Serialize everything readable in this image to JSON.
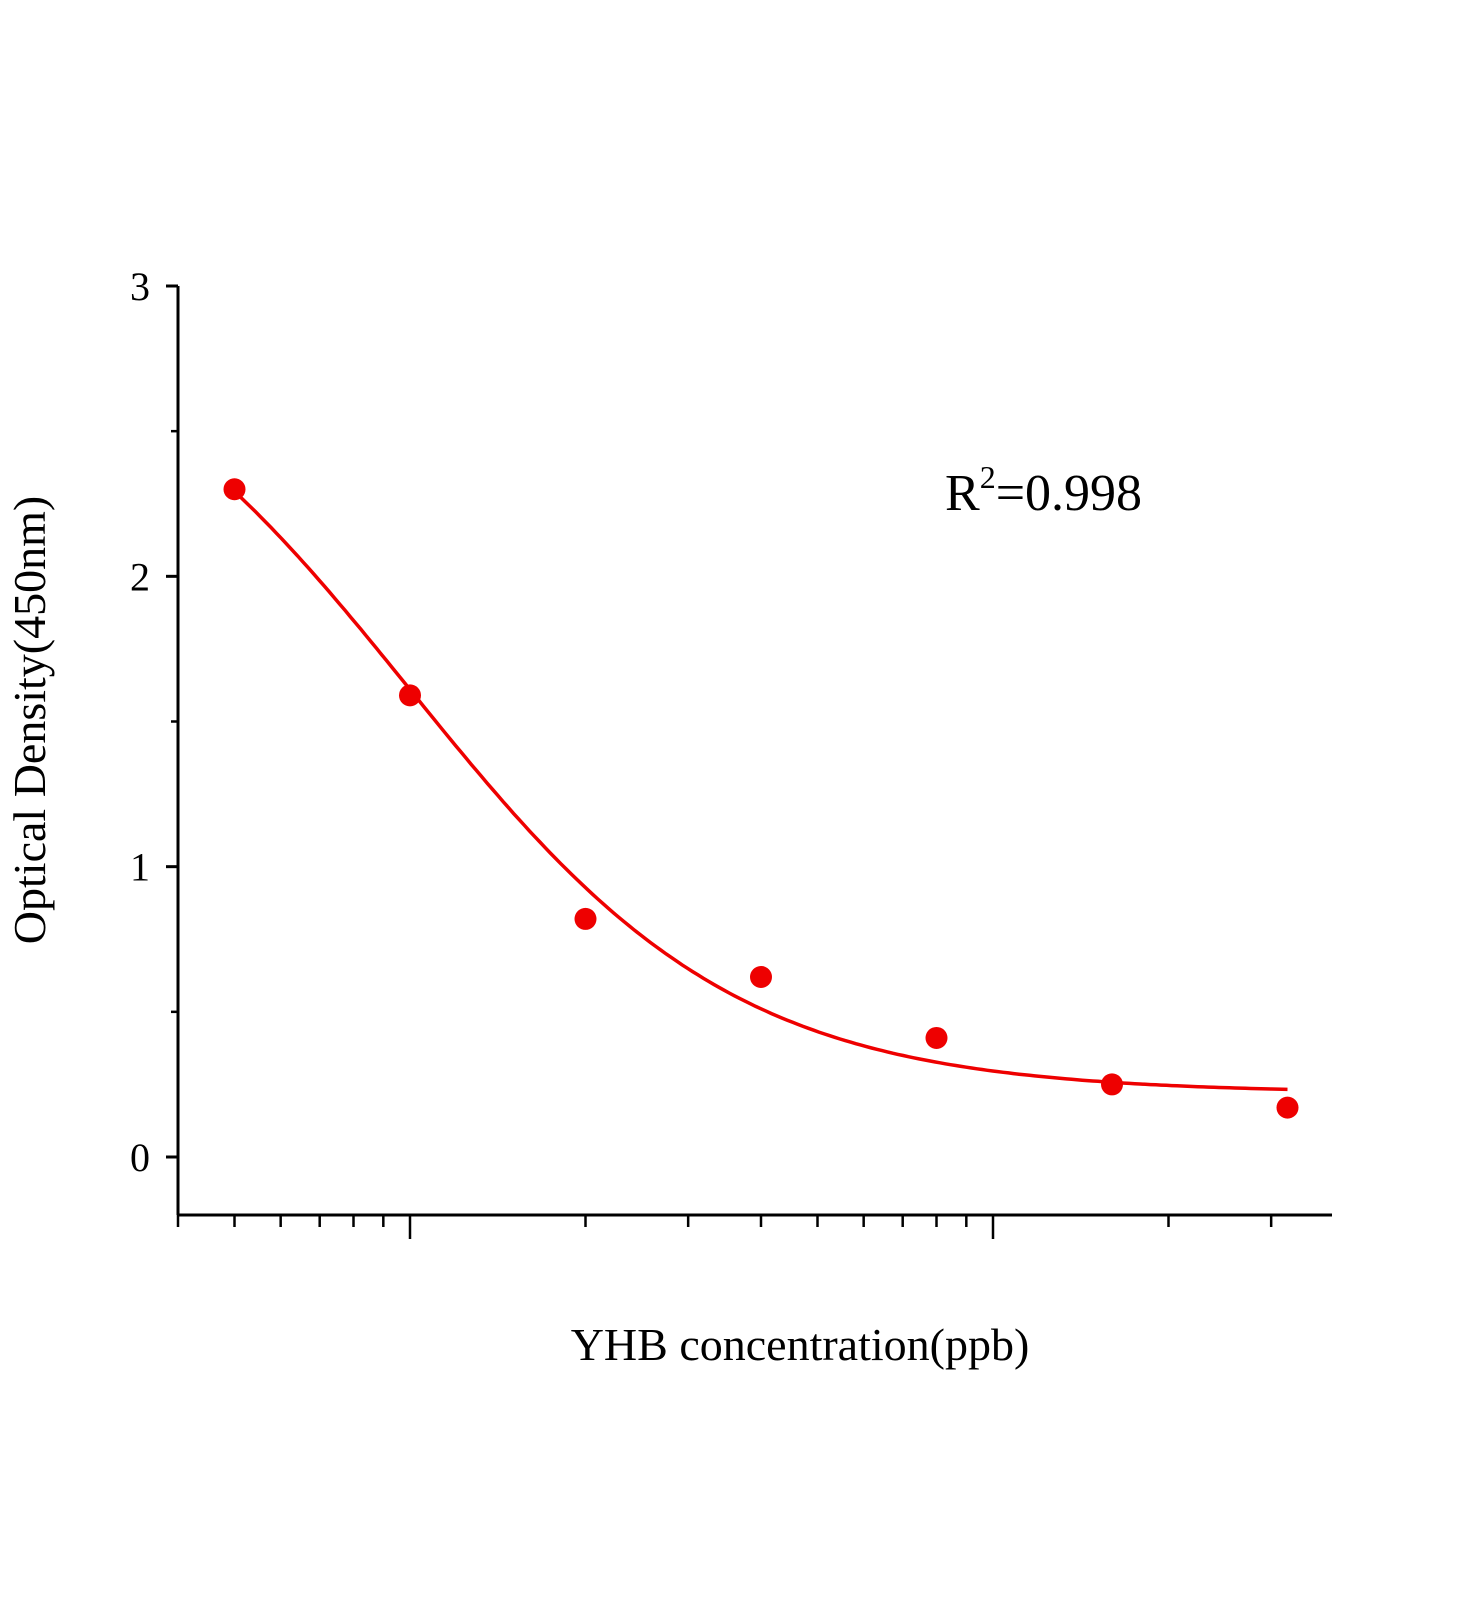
{
  "chart_data": {
    "type": "scatter",
    "title": "",
    "xlabel": "YHB concentration(ppb)",
    "ylabel": "Optical Density(450nm)",
    "x_scale": "log",
    "x_tick_labels": [],
    "xlim": [
      0.4,
      38
    ],
    "ylim": [
      -0.2,
      3
    ],
    "y_ticks": [
      0,
      1,
      2,
      3
    ],
    "grid": false,
    "legend": "none",
    "color": "#ee0000",
    "points": {
      "x": [
        0.5,
        1,
        2,
        4,
        8,
        16,
        32
      ],
      "y": [
        2.3,
        1.59,
        0.82,
        0.62,
        0.41,
        0.25,
        0.17
      ]
    },
    "fit": {
      "model": "4-parameter logistic",
      "top": 3.0,
      "bottom": 0.22,
      "ec50": 1.0,
      "hill": 1.55
    },
    "annotation": {
      "prefix": "R",
      "sup": "2",
      "suffix": "=0.998"
    }
  }
}
